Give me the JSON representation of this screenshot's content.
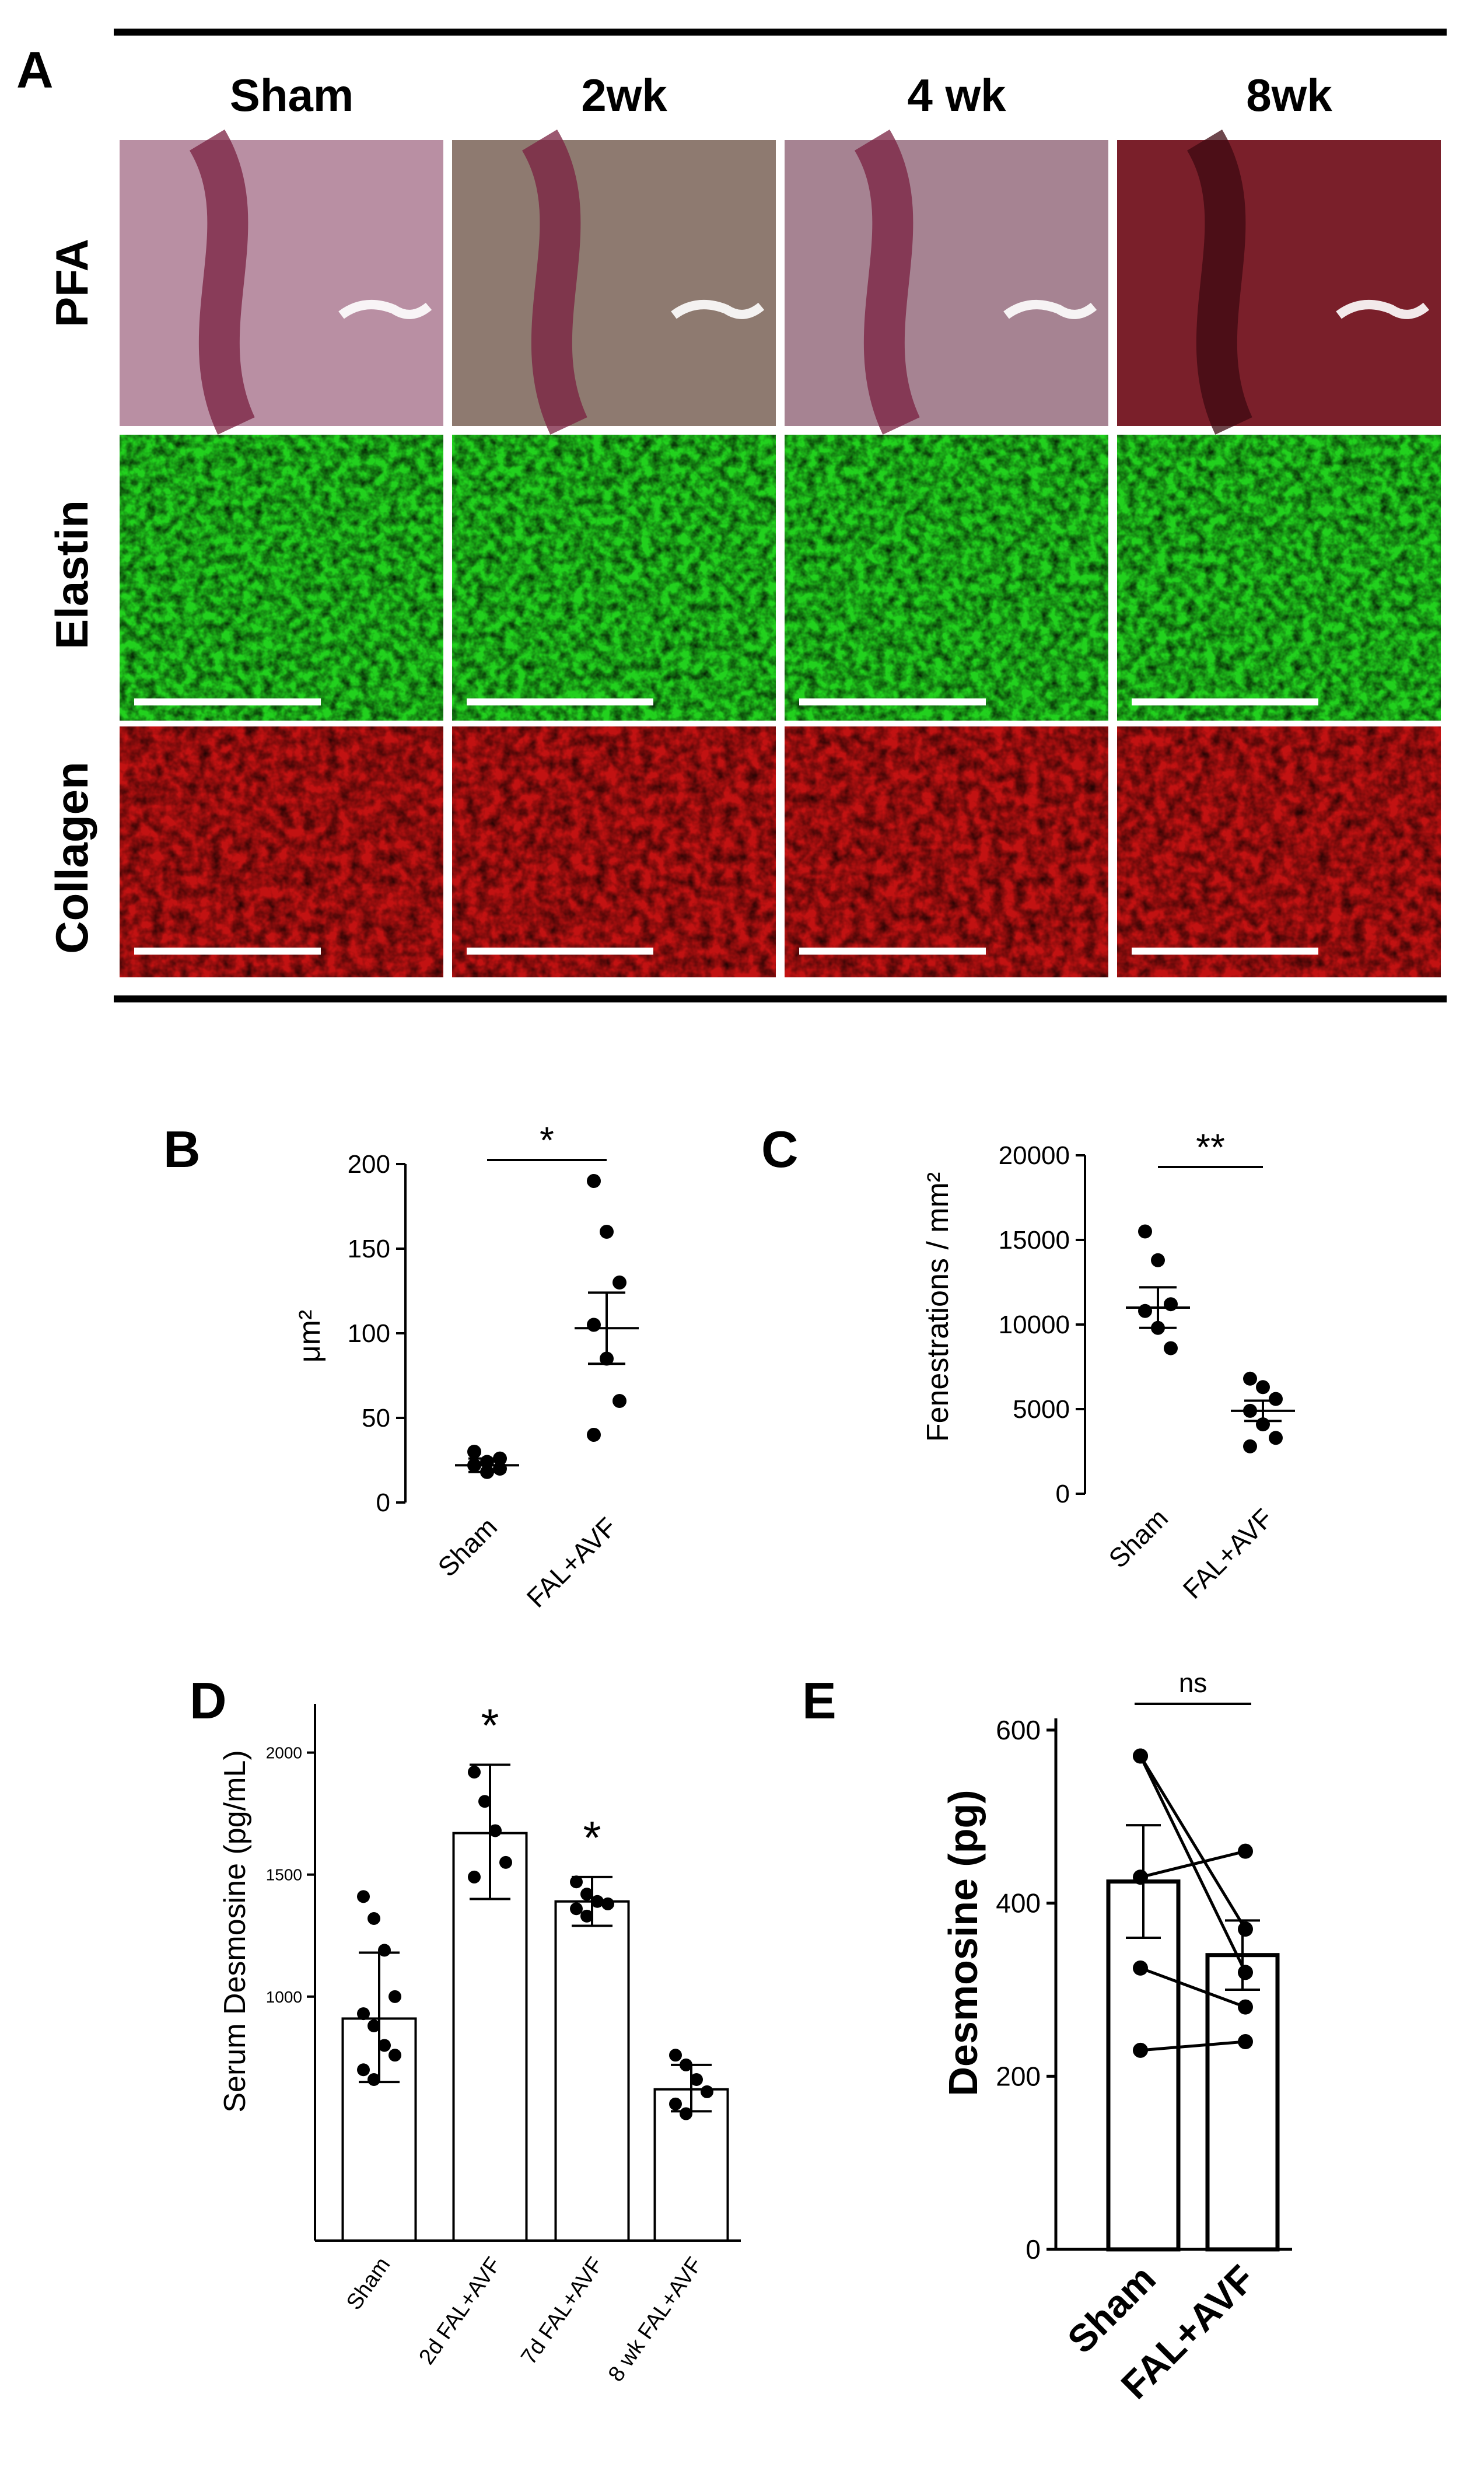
{
  "panel_A": {
    "letter": "A",
    "columns": [
      "Sham",
      "2wk",
      "4 wk",
      "8wk"
    ],
    "rows": [
      "PFA",
      "Elastin",
      "Collagen"
    ],
    "colors": {
      "pfa_sham": "#b98fa3",
      "pfa_2wk": "#8e7a70",
      "pfa_4wk": "#a68392",
      "pfa_8wk": "#7a1f2a",
      "vessel": "#7a2040",
      "elastin": "#22d11e",
      "elastin_dark": "#0b3a0a",
      "collagen": "#c21212",
      "collagen_dark": "#3a0404",
      "scale_bar": "#ffffff"
    }
  },
  "panel_B": {
    "letter": "B",
    "ylabel": "μm²",
    "significance": "*",
    "chart_data": {
      "type": "scatter",
      "categories": [
        "Sham",
        "FAL+AVF"
      ],
      "series": [
        {
          "name": "Sham",
          "values": [
            22,
            24,
            26,
            30,
            18,
            20
          ],
          "mean": 22,
          "sem_low": 18,
          "sem_high": 26
        },
        {
          "name": "FAL+AVF",
          "values": [
            190,
            160,
            130,
            105,
            85,
            60,
            40
          ],
          "mean": 103,
          "sem_low": 82,
          "sem_high": 124
        }
      ],
      "ylim": [
        0,
        200
      ],
      "yticks": [
        "0",
        "50",
        "100",
        "150",
        "200"
      ]
    }
  },
  "panel_C": {
    "letter": "C",
    "ylabel": "Fenestrations / mm²",
    "significance": "**",
    "chart_data": {
      "type": "scatter",
      "categories": [
        "Sham",
        "FAL+AVF"
      ],
      "series": [
        {
          "name": "Sham",
          "values": [
            15500,
            13800,
            11200,
            10800,
            9800,
            8600
          ],
          "mean": 11000,
          "sem_low": 9800,
          "sem_high": 12200
        },
        {
          "name": "FAL+AVF",
          "values": [
            6800,
            6300,
            5600,
            4900,
            4100,
            3300,
            2800
          ],
          "mean": 4900,
          "sem_low": 4300,
          "sem_high": 5500
        }
      ],
      "ylim": [
        0,
        20000
      ],
      "yticks": [
        "0",
        "5000",
        "10000",
        "15000",
        "20000"
      ]
    }
  },
  "panel_D": {
    "letter": "D",
    "ylabel": "Serum Desmosine (pg/mL)",
    "chart_data": {
      "type": "bar",
      "categories": [
        "Sham",
        "2d FAL+AVF",
        "7d FAL+AVF",
        "8 wk FAL+AVF"
      ],
      "values": [
        910,
        1670,
        1390,
        620
      ],
      "sd_low": [
        650,
        1400,
        1290,
        530
      ],
      "sd_high": [
        1180,
        1950,
        1490,
        720
      ],
      "points": [
        [
          1410,
          1320,
          1190,
          1000,
          930,
          880,
          800,
          760,
          700,
          660
        ],
        [
          1920,
          1800,
          1680,
          1550,
          1490
        ],
        [
          1470,
          1420,
          1390,
          1380,
          1360,
          1330
        ],
        [
          760,
          720,
          660,
          610,
          560,
          520
        ]
      ],
      "significance": [
        "",
        "*",
        "*",
        ""
      ],
      "ylim": [
        0,
        2200
      ],
      "yticks": [
        "1000",
        "1500",
        "2000"
      ]
    }
  },
  "panel_E": {
    "letter": "E",
    "ylabel": "Desmosine (pg)",
    "significance": "ns",
    "chart_data": {
      "type": "bar",
      "categories": [
        "Sham",
        "FAL+AVF"
      ],
      "values": [
        425,
        340
      ],
      "sem_low": [
        360,
        300
      ],
      "sem_high": [
        490,
        380
      ],
      "pairs": [
        [
          570,
          370
        ],
        [
          430,
          460
        ],
        [
          325,
          280
        ],
        [
          230,
          240
        ],
        [
          570,
          320
        ]
      ],
      "ylim": [
        0,
        600
      ],
      "yticks": [
        "0",
        "200",
        "400",
        "600"
      ]
    }
  }
}
